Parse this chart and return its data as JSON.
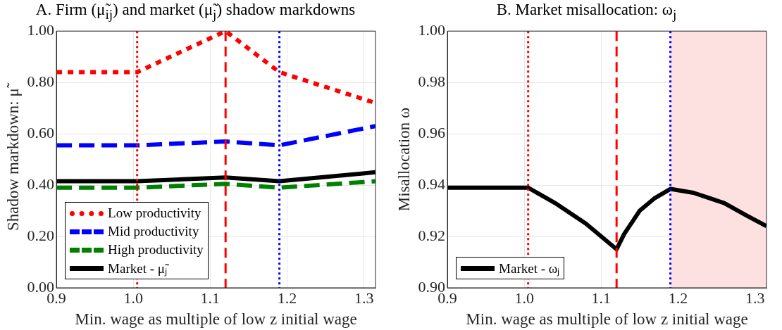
{
  "chart_data": [
    {
      "type": "line",
      "title": "A. Firm (μ̃$_{ij}$) and market (μ̃$_{j}$) shadow markdowns",
      "xlabel": "Min. wage as multiple of low z initial wage",
      "ylabel": "Shadow markdown: μ̃",
      "xlim": [
        0.9,
        1.315
      ],
      "xticks": [
        0.9,
        {
          "value": 1,
          "label": "1.0"
        },
        1.1,
        1.2,
        1.3
      ],
      "ylim": [
        0,
        1
      ],
      "yticks": [
        {
          "value": 0,
          "label": "0.00"
        },
        {
          "value": 0.2,
          "label": "0.20"
        },
        {
          "value": 0.4,
          "label": "0.40"
        },
        {
          "value": 0.6,
          "label": "0.60"
        },
        {
          "value": 0.8,
          "label": "0.80"
        },
        {
          "value": 1,
          "label": "1.00"
        }
      ],
      "grid": true,
      "legend": "bottom left",
      "marker": "none",
      "series": [
        {
          "name": "Low productivity",
          "color": "#ff0000",
          "line_style": "dotted",
          "x": [
            0.9,
            1.005,
            1.12,
            1.19,
            1.315
          ],
          "values": [
            0.84,
            0.84,
            1.0,
            0.84,
            0.72
          ]
        },
        {
          "name": "Mid productivity",
          "color": "#0000ff",
          "line_style": "dashed",
          "x": [
            0.9,
            1.005,
            1.12,
            1.19,
            1.315
          ],
          "values": [
            0.555,
            0.555,
            0.57,
            0.555,
            0.63
          ]
        },
        {
          "name": "High productivity",
          "color": "#008000",
          "line_style": "dashed",
          "x": [
            0.9,
            1.005,
            1.12,
            1.19,
            1.315
          ],
          "values": [
            0.39,
            0.39,
            0.405,
            0.39,
            0.415
          ]
        },
        {
          "name": "Market - μ̃ⱼ",
          "color": "#000000",
          "line_style": "solid",
          "x": [
            0.9,
            1.005,
            1.12,
            1.19,
            1.315
          ],
          "values": [
            0.415,
            0.415,
            0.43,
            0.415,
            0.45
          ]
        }
      ],
      "ref_lines": [
        {
          "axis": "x",
          "value": 1.005,
          "color": "#ff0000",
          "line_style": "dotted"
        },
        {
          "axis": "x",
          "value": 1.12,
          "color": "#ff0000",
          "line_style": "dashed"
        },
        {
          "axis": "x",
          "value": 1.19,
          "color": "#0000ff",
          "line_style": "dotted"
        }
      ]
    },
    {
      "type": "line",
      "title": "B. Market misallocation: ω$_{j}$",
      "xlabel": "Min. wage as multiple of low z initial wage",
      "ylabel": "Misallocation ω",
      "xlim": [
        0.9,
        1.315
      ],
      "xticks": [
        0.9,
        {
          "value": 1,
          "label": "1.0"
        },
        1.1,
        1.2,
        1.3
      ],
      "ylim": [
        0.9,
        1
      ],
      "yticks": [
        {
          "value": 0.9,
          "label": "0.90"
        },
        0.92,
        0.94,
        0.96,
        0.98,
        {
          "value": 1,
          "label": "1.00"
        }
      ],
      "grid": true,
      "legend": "bottom left",
      "marker": "none",
      "series": [
        {
          "name": "Market - ωⱼ",
          "color": "#000000",
          "line_style": "solid",
          "x": [
            0.9,
            1.005,
            1.04,
            1.08,
            1.12,
            1.13,
            1.15,
            1.17,
            1.19,
            1.22,
            1.26,
            1.29,
            1.315
          ],
          "values": [
            0.939,
            0.939,
            0.933,
            0.925,
            0.915,
            0.921,
            0.93,
            0.935,
            0.9385,
            0.937,
            0.933,
            0.928,
            0.924
          ]
        }
      ],
      "ref_lines": [
        {
          "axis": "x",
          "value": 1.005,
          "color": "#ff0000",
          "line_style": "dotted"
        },
        {
          "axis": "x",
          "value": 1.12,
          "color": "#ff0000",
          "line_style": "dashed"
        },
        {
          "axis": "x",
          "value": 1.19,
          "color": "#0000ff",
          "line_style": "dotted"
        }
      ],
      "bands": [
        {
          "axis": "x",
          "from": 1.19,
          "to": 1.315,
          "color": "#fde0e0"
        }
      ]
    }
  ]
}
